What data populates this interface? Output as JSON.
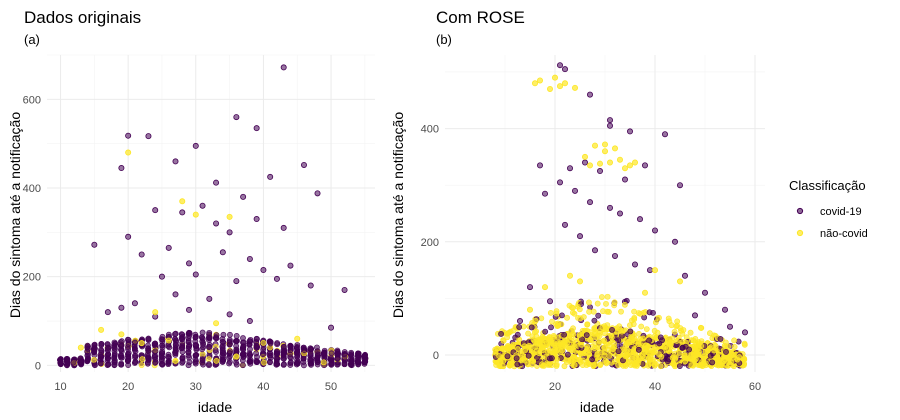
{
  "colors": {
    "covid": "#440154",
    "naocovid": "#FDE725",
    "grid": "#ebebeb"
  },
  "legend": {
    "title": "Classificação",
    "items": [
      {
        "label": "covid-19",
        "color": "#440154"
      },
      {
        "label": "não-covid",
        "color": "#FDE725"
      }
    ]
  },
  "chart_data": [
    {
      "type": "scatter",
      "title": "Dados originais",
      "tag": "(a)",
      "xlabel": "idade",
      "ylabel": "Dias do sintoma até a notificação",
      "xlim": [
        8,
        56.5
      ],
      "ylim": [
        -15,
        700
      ],
      "xticks": [
        10,
        20,
        30,
        40,
        50
      ],
      "yticks": [
        0,
        200,
        400,
        600
      ],
      "grid": true,
      "series": [
        {
          "name": "covid-19",
          "x": [
            43,
            36,
            39,
            20,
            23,
            30,
            41,
            46,
            48,
            19,
            27,
            33,
            37,
            15,
            20,
            24,
            28,
            31,
            33,
            35,
            39,
            43,
            22,
            26,
            29,
            34,
            38,
            40,
            44,
            25,
            30,
            36,
            42,
            47,
            52,
            21,
            27,
            32,
            17,
            19,
            24,
            29,
            35,
            38,
            50
          ],
          "y": [
            672,
            560,
            535,
            518,
            517,
            495,
            425,
            452,
            388,
            445,
            460,
            412,
            380,
            272,
            290,
            350,
            345,
            360,
            320,
            300,
            330,
            310,
            250,
            265,
            230,
            255,
            240,
            215,
            225,
            200,
            205,
            190,
            195,
            180,
            170,
            140,
            160,
            150,
            120,
            130,
            110,
            125,
            115,
            100,
            85
          ]
        },
        {
          "name": "não-covid",
          "x": [
            20,
            28,
            30,
            35,
            24,
            16,
            19,
            13,
            33,
            45,
            22,
            36,
            27
          ],
          "y": [
            480,
            370,
            340,
            335,
            120,
            80,
            70,
            40,
            95,
            60,
            50,
            20,
            10
          ]
        }
      ]
    },
    {
      "type": "scatter",
      "title": "Com  ROSE",
      "tag": "(b)",
      "xlabel": "idade",
      "ylabel": "Dias do sintoma até a notificação",
      "xlim": [
        -2,
        62
      ],
      "ylim": [
        -30,
        530
      ],
      "xticks": [
        20,
        40,
        60
      ],
      "yticks": [
        0,
        200,
        400
      ],
      "grid": true,
      "series": [
        {
          "name": "covid-19",
          "x": [
            21,
            22,
            27,
            31,
            31,
            35,
            42,
            17,
            23,
            26,
            29,
            34,
            38,
            45,
            18,
            21,
            24,
            27,
            31,
            33,
            37,
            40,
            44,
            22,
            25,
            28,
            32,
            36,
            39,
            46,
            50,
            54,
            15,
            19,
            13,
            58,
            55,
            48
          ],
          "y": [
            512,
            505,
            460,
            415,
            405,
            395,
            390,
            335,
            330,
            340,
            325,
            310,
            335,
            300,
            285,
            305,
            290,
            270,
            260,
            250,
            240,
            220,
            200,
            230,
            210,
            185,
            175,
            160,
            150,
            140,
            110,
            80,
            120,
            95,
            60,
            40,
            50,
            70
          ]
        },
        {
          "name": "não-covid",
          "x": [
            16,
            17,
            19,
            20,
            21,
            22,
            24,
            28,
            30,
            31,
            33,
            35,
            26,
            29,
            34,
            32,
            30,
            27,
            36,
            23,
            40,
            45,
            15,
            18,
            25,
            38
          ],
          "y": [
            480,
            485,
            470,
            490,
            475,
            480,
            472,
            370,
            360,
            340,
            345,
            335,
            350,
            338,
            330,
            365,
            372,
            335,
            340,
            140,
            150,
            130,
            80,
            120,
            130,
            110
          ]
        }
      ]
    }
  ]
}
